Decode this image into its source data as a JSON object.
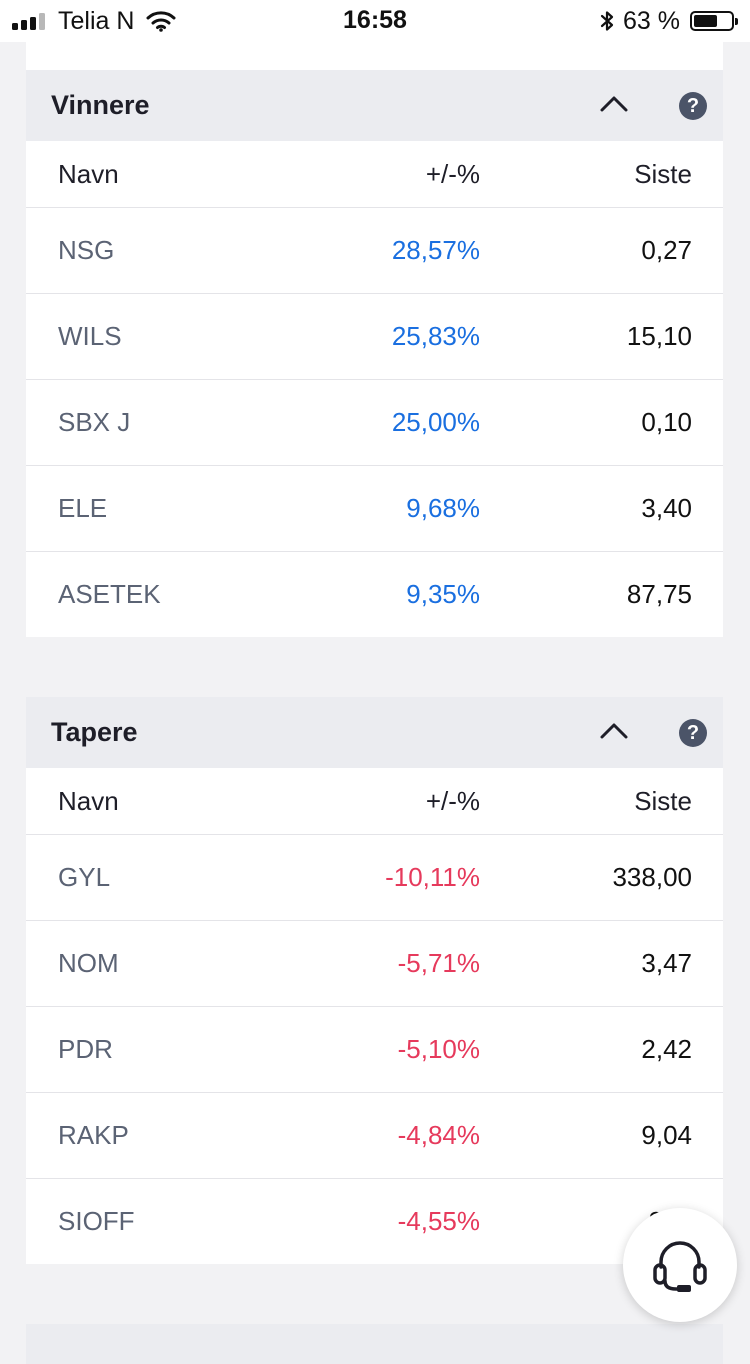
{
  "status_bar": {
    "carrier": "Telia N",
    "time": "16:58",
    "battery": "63 %",
    "battery_level": 0.63,
    "signal_bars": 3
  },
  "sections": [
    {
      "title": "Vinnere",
      "columns": {
        "name": "Navn",
        "change": "+/-%",
        "last": "Siste"
      },
      "rows": [
        {
          "name": "NSG",
          "change": "28,57%",
          "last": "0,27"
        },
        {
          "name": "WILS",
          "change": "25,83%",
          "last": "15,10"
        },
        {
          "name": "SBX J",
          "change": "25,00%",
          "last": "0,10"
        },
        {
          "name": "ELE",
          "change": "9,68%",
          "last": "3,40"
        },
        {
          "name": "ASETEK",
          "change": "9,35%",
          "last": "87,75"
        }
      ]
    },
    {
      "title": "Tapere",
      "columns": {
        "name": "Navn",
        "change": "+/-%",
        "last": "Siste"
      },
      "rows": [
        {
          "name": "GYL",
          "change": "-10,11%",
          "last": "338,00"
        },
        {
          "name": "NOM",
          "change": "-5,71%",
          "last": "3,47"
        },
        {
          "name": "PDR",
          "change": "-5,10%",
          "last": "2,42"
        },
        {
          "name": "RAKP",
          "change": "-4,84%",
          "last": "9,04"
        },
        {
          "name": "SIOFF",
          "change": "-4,55%",
          "last": "2,..."
        }
      ]
    }
  ],
  "help_glyph": "?",
  "icons": {
    "collapse": "chevron-up-icon",
    "help": "help-icon",
    "chat": "headset-icon",
    "wifi": "wifi-icon",
    "bluetooth": "bluetooth-icon"
  },
  "colors": {
    "positive": "#1a6fe0",
    "negative": "#e63a5c",
    "header_bg": "#ebecf0",
    "help_bg": "#4b5468"
  }
}
